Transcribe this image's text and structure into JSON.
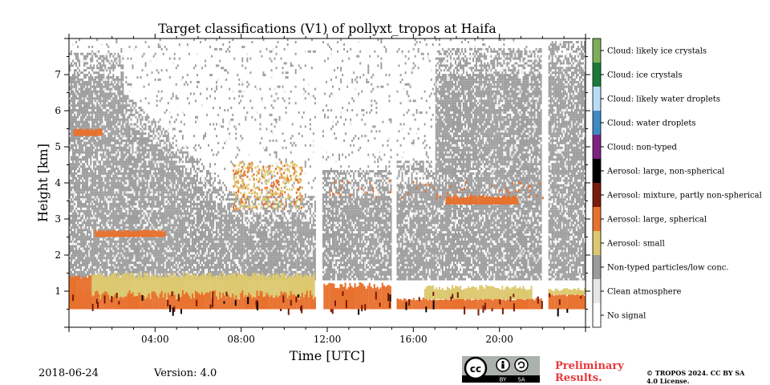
{
  "chart_data": {
    "type": "heatmap",
    "title": "Target classifications (V1) of pollyxt_tropos at Haifa",
    "xlabel": "Time [UTC]",
    "ylabel": "Height [km]",
    "xlim": [
      0,
      24
    ],
    "ylim": [
      0,
      8
    ],
    "x_ticks": [
      "04:00",
      "08:00",
      "12:00",
      "16:00",
      "20:00"
    ],
    "y_ticks": [
      "1",
      "2",
      "3",
      "4",
      "5",
      "6",
      "7"
    ],
    "x_tick_values": [
      4,
      8,
      12,
      16,
      20
    ],
    "y_tick_values": [
      1,
      2,
      3,
      4,
      5,
      6,
      7
    ],
    "colorbar": [
      {
        "label": "Cloud: likely ice crystals",
        "color": "#7fae5a"
      },
      {
        "label": "Cloud: ice crystals",
        "color": "#1a7a3a"
      },
      {
        "label": "Cloud: likely water droplets",
        "color": "#b7dcf5"
      },
      {
        "label": "Cloud: water droplets",
        "color": "#3d8ac6"
      },
      {
        "label": "Cloud: non-typed",
        "color": "#7f2082"
      },
      {
        "label": "Aerosol: large, non-spherical",
        "color": "#000000"
      },
      {
        "label": "Aerosol: mixture, partly non-spherical",
        "color": "#7a1a08"
      },
      {
        "label": "Aerosol: large, spherical",
        "color": "#e8712d"
      },
      {
        "label": "Aerosol: small",
        "color": "#dcc86e"
      },
      {
        "label": "Non-typed particles/low conc.",
        "color": "#9b9b9b"
      },
      {
        "label": "Clean atmosphere",
        "color": "#e6e6e6"
      },
      {
        "label": "No signal",
        "color": "#ffffff"
      }
    ],
    "regions": [
      {
        "class": "Aerosol: large, spherical",
        "x": [
          0,
          11.5
        ],
        "y": [
          0.5,
          1.4
        ]
      },
      {
        "class": "Aerosol: small",
        "x": [
          1,
          11
        ],
        "y": [
          0.8,
          1.4
        ]
      },
      {
        "class": "Aerosol: large, spherical",
        "x": [
          11.7,
          14.9
        ],
        "y": [
          0.5,
          1.2
        ]
      },
      {
        "class": "Aerosol: large, spherical",
        "x": [
          15.1,
          22
        ],
        "y": [
          0.5,
          0.8
        ]
      },
      {
        "class": "Aerosol: large, spherical",
        "x": [
          22.2,
          24
        ],
        "y": [
          0.5,
          0.9
        ]
      },
      {
        "class": "Aerosol: large, spherical",
        "x": [
          1,
          4.5
        ],
        "y": [
          2.5,
          2.7
        ]
      },
      {
        "class": "Aerosol: large, spherical",
        "x": [
          0.2,
          1.5
        ],
        "y": [
          5.3,
          5.5
        ]
      },
      {
        "class": "Aerosol: small",
        "x": [
          8,
          10.5
        ],
        "y": [
          3.3,
          4.0
        ]
      },
      {
        "class": "Aerosol: large, spherical",
        "x": [
          17.5,
          21
        ],
        "y": [
          3.4,
          3.7
        ]
      },
      {
        "class": "Non-typed particles/low conc.",
        "x": [
          0,
          24
        ],
        "y": [
          1.0,
          4.5
        ]
      }
    ]
  },
  "footer": {
    "date": "2018-06-24",
    "version": "Version: 4.0",
    "preliminary": "Preliminary Results.",
    "copyright": "© TROPOS 2024. CC BY SA 4.0 License."
  },
  "license_badge": {
    "cc": "cc",
    "by": "BY",
    "sa": "SA"
  }
}
